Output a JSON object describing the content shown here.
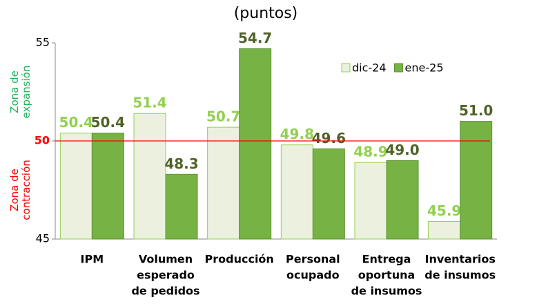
{
  "chart_data": {
    "type": "bar",
    "title": "(puntos)",
    "categories": [
      [
        "IPM"
      ],
      [
        "Volumen",
        "esperado",
        "de pedidos"
      ],
      [
        "Producción"
      ],
      [
        "Personal",
        "ocupado"
      ],
      [
        "Entrega",
        "oportuna",
        "de insumos"
      ],
      [
        "Inventarios",
        "de insumos"
      ]
    ],
    "series": [
      {
        "name": "dic-24",
        "color": "#ebf1de",
        "edge": "#92d050",
        "label_color": "#92d050",
        "values": [
          50.4,
          51.4,
          50.7,
          49.8,
          48.9,
          45.9
        ],
        "value_labels": [
          "50.4",
          "51.4",
          "50.7",
          "49.8",
          "48.9",
          "45.9"
        ]
      },
      {
        "name": "ene-25",
        "color": "#77b244",
        "edge": "#5e9233",
        "label_color": "#4f6228",
        "values": [
          50.4,
          48.3,
          54.7,
          49.6,
          49.0,
          51.0
        ],
        "value_labels": [
          "50.4",
          "48.3",
          "54.7",
          "49.6",
          "49.0",
          "51.0"
        ]
      }
    ],
    "ylim": [
      45,
      55
    ],
    "yticks": [
      45,
      50,
      55
    ],
    "reference_line": {
      "value": 50,
      "color": "#ff0000"
    },
    "annotations": [
      {
        "text": [
          "Zona de",
          "expansión"
        ],
        "color": "#1fb25a"
      },
      {
        "text": [
          "Zona de",
          "contracción"
        ],
        "color": "#ff0000"
      }
    ],
    "legend": "top-right"
  }
}
